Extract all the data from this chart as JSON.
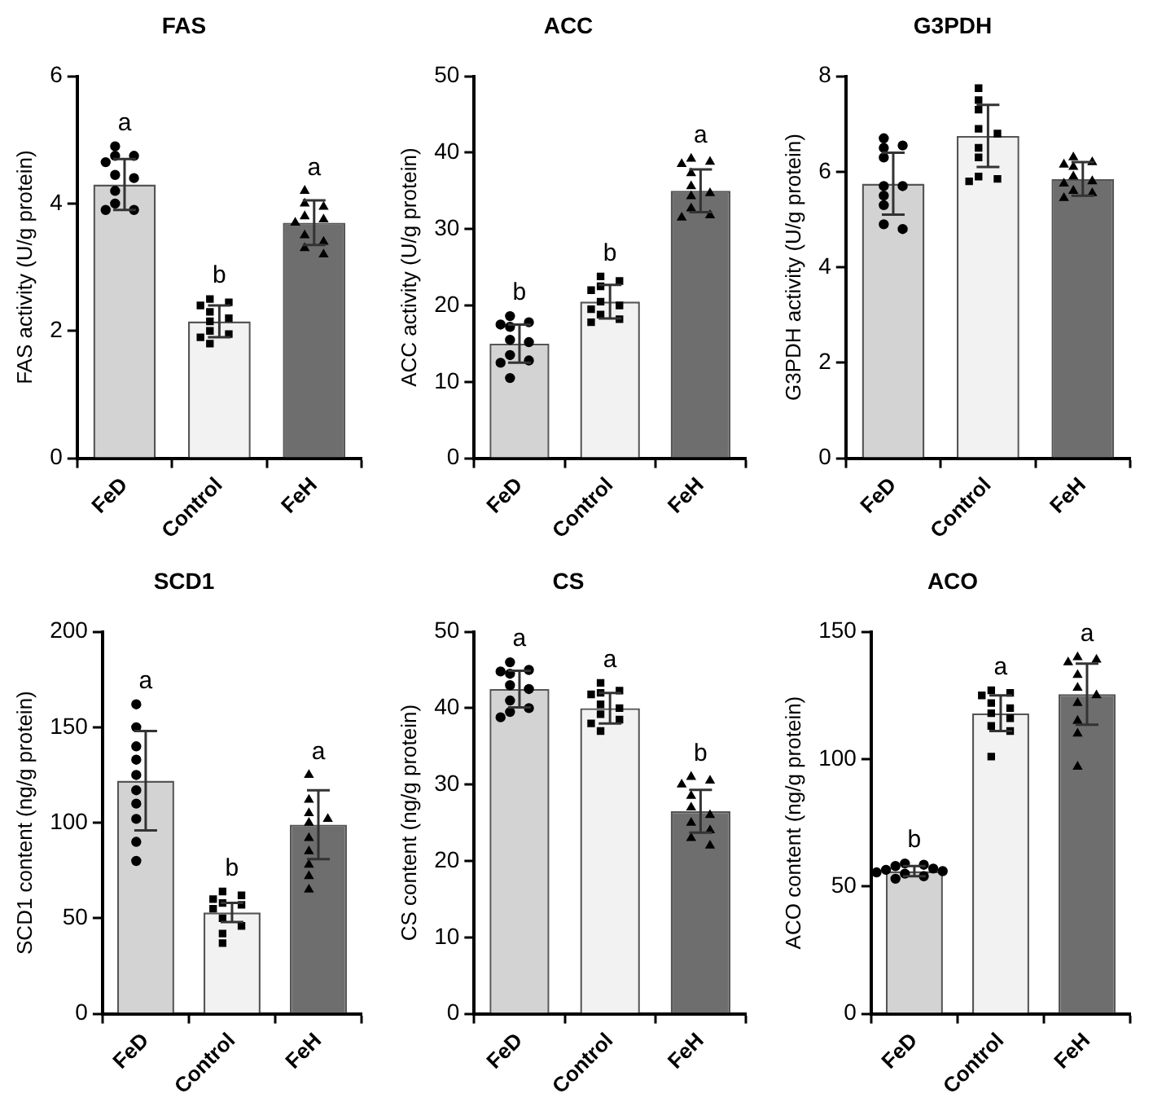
{
  "chart_data": [
    {
      "type": "bar",
      "title": "FAS",
      "ylabel": "FAS activity (U/g protein)",
      "categories": [
        "FeD",
        "Control",
        "FeH"
      ],
      "ylim": [
        0,
        6
      ],
      "yticks": [
        0,
        2,
        4,
        6
      ],
      "grid": false,
      "legend": false,
      "series": [
        {
          "type": "bar",
          "values": [
            4.3,
            2.15,
            3.7
          ],
          "errors": [
            0.4,
            0.25,
            0.35
          ],
          "colors": [
            "#d3d3d3",
            "#f2f2f2",
            "#6e6e6e"
          ]
        },
        {
          "type": "scatter",
          "marker": "circle",
          "color": "#000000",
          "x": [
            "FeD",
            "FeD",
            "FeD",
            "FeD",
            "FeD",
            "FeD",
            "FeD",
            "FeD",
            "FeD",
            "FeD"
          ],
          "values": [
            4.9,
            4.75,
            4.75,
            4.65,
            4.45,
            4.4,
            4.2,
            4.0,
            3.9,
            3.9
          ]
        },
        {
          "type": "scatter",
          "marker": "square",
          "color": "#000000",
          "x": [
            "Control",
            "Control",
            "Control",
            "Control",
            "Control",
            "Control",
            "Control",
            "Control",
            "Control",
            "Control"
          ],
          "values": [
            2.5,
            2.45,
            2.4,
            2.3,
            2.2,
            2.15,
            2.0,
            1.95,
            1.9,
            1.8
          ]
        },
        {
          "type": "scatter",
          "marker": "triangle",
          "color": "#000000",
          "x": [
            "FeH",
            "FeH",
            "FeH",
            "FeH",
            "FeH",
            "FeH",
            "FeH",
            "FeH",
            "FeH",
            "FeH"
          ],
          "values": [
            4.2,
            4.0,
            3.95,
            3.8,
            3.75,
            3.7,
            3.5,
            3.4,
            3.3,
            3.2
          ]
        }
      ],
      "annotations": [
        "a",
        "b",
        "a"
      ]
    },
    {
      "type": "bar",
      "title": "ACC",
      "ylabel": "ACC activity (U/g protein)",
      "categories": [
        "FeD",
        "Control",
        "FeH"
      ],
      "ylim": [
        0,
        50
      ],
      "yticks": [
        0,
        10,
        20,
        30,
        40,
        50
      ],
      "grid": false,
      "legend": false,
      "series": [
        {
          "type": "bar",
          "values": [
            15,
            20.5,
            35
          ],
          "errors": [
            2.5,
            2.2,
            2.8
          ],
          "colors": [
            "#d3d3d3",
            "#f2f2f2",
            "#6e6e6e"
          ]
        },
        {
          "type": "scatter",
          "marker": "circle",
          "color": "#000000",
          "x": [
            "FeD",
            "FeD",
            "FeD",
            "FeD",
            "FeD",
            "FeD",
            "FeD",
            "FeD",
            "FeD",
            "FeD"
          ],
          "values": [
            18.6,
            17.8,
            17.5,
            17.2,
            15.5,
            15.2,
            13.5,
            12.8,
            12.5,
            10.5
          ]
        },
        {
          "type": "scatter",
          "marker": "square",
          "color": "#000000",
          "x": [
            "Control",
            "Control",
            "Control",
            "Control",
            "Control",
            "Control",
            "Control",
            "Control",
            "Control",
            "Control"
          ],
          "values": [
            23.8,
            23.2,
            22.5,
            22,
            20.5,
            20,
            19.5,
            18.8,
            18.2,
            17.8
          ]
        },
        {
          "type": "scatter",
          "marker": "triangle",
          "color": "#000000",
          "x": [
            "FeH",
            "FeH",
            "FeH",
            "FeH",
            "FeH",
            "FeH",
            "FeH",
            "FeH",
            "FeH",
            "FeH"
          ],
          "values": [
            39.2,
            38.8,
            38.5,
            37.3,
            35.6,
            34.7,
            34.3,
            32.7,
            31.8,
            31.5
          ]
        }
      ],
      "annotations": [
        "b",
        "b",
        "a"
      ]
    },
    {
      "type": "bar",
      "title": "G3PDH",
      "ylabel": "G3PDH activity (U/g protein)",
      "categories": [
        "FeD",
        "Control",
        "FeH"
      ],
      "ylim": [
        0,
        8
      ],
      "yticks": [
        0,
        2,
        4,
        6,
        8
      ],
      "grid": false,
      "legend": false,
      "series": [
        {
          "type": "bar",
          "values": [
            5.75,
            6.75,
            5.85
          ],
          "errors": [
            0.65,
            0.65,
            0.35
          ],
          "colors": [
            "#d3d3d3",
            "#f2f2f2",
            "#6e6e6e"
          ]
        },
        {
          "type": "scatter",
          "marker": "circle",
          "color": "#000000",
          "x": [
            "FeD",
            "FeD",
            "FeD",
            "FeD",
            "FeD",
            "FeD",
            "FeD",
            "FeD",
            "FeD",
            "FeD"
          ],
          "values": [
            6.7,
            6.55,
            6.5,
            6.3,
            5.7,
            5.7,
            5.5,
            5.3,
            4.9,
            4.8
          ]
        },
        {
          "type": "scatter",
          "marker": "square",
          "color": "#000000",
          "x": [
            "Control",
            "Control",
            "Control",
            "Control",
            "Control",
            "Control",
            "Control",
            "Control",
            "Control",
            "Control"
          ],
          "values": [
            7.75,
            7.5,
            7.3,
            6.9,
            6.8,
            6.5,
            6.3,
            5.9,
            5.85,
            5.8
          ]
        },
        {
          "type": "scatter",
          "marker": "triangle",
          "color": "#000000",
          "x": [
            "FeH",
            "FeH",
            "FeH",
            "FeH",
            "FeH",
            "FeH",
            "FeH",
            "FeH",
            "FeH",
            "FeH"
          ],
          "values": [
            6.3,
            6.2,
            6.15,
            6.1,
            5.9,
            5.8,
            5.75,
            5.6,
            5.55,
            5.45
          ]
        }
      ]
    },
    {
      "type": "bar",
      "title": "SCD1",
      "ylabel": "SCD1 content (ng/g protein)",
      "categories": [
        "FeD",
        "Control",
        "FeH"
      ],
      "ylim": [
        0,
        200
      ],
      "yticks": [
        0,
        50,
        100,
        150,
        200
      ],
      "grid": false,
      "legend": false,
      "series": [
        {
          "type": "bar",
          "values": [
            122,
            53,
            99
          ],
          "errors": [
            26,
            5,
            18
          ],
          "colors": [
            "#d3d3d3",
            "#f2f2f2",
            "#6e6e6e"
          ]
        },
        {
          "type": "scatter",
          "marker": "circle",
          "color": "#000000",
          "x": [
            "FeD",
            "FeD",
            "FeD",
            "FeD",
            "FeD",
            "FeD",
            "FeD",
            "FeD",
            "FeD",
            "FeD"
          ],
          "values": [
            162,
            150,
            140,
            133,
            125,
            117,
            110,
            102,
            90,
            80
          ]
        },
        {
          "type": "scatter",
          "marker": "square",
          "color": "#000000",
          "x": [
            "Control",
            "Control",
            "Control",
            "Control",
            "Control",
            "Control",
            "Control",
            "Control",
            "Control",
            "Control"
          ],
          "values": [
            64,
            62,
            60,
            58,
            57,
            55,
            50,
            46,
            42,
            37
          ]
        },
        {
          "type": "scatter",
          "marker": "triangle",
          "color": "#000000",
          "x": [
            "FeH",
            "FeH",
            "FeH",
            "FeH",
            "FeH",
            "FeH",
            "FeH",
            "FeH",
            "FeH",
            "FeH"
          ],
          "values": [
            125,
            112,
            105,
            102,
            100,
            92,
            85,
            78,
            72,
            65
          ]
        }
      ],
      "annotations": [
        "a",
        "b",
        "a"
      ]
    },
    {
      "type": "bar",
      "title": "CS",
      "ylabel": "CS content (ng/g protein)",
      "categories": [
        "FeD",
        "Control",
        "FeH"
      ],
      "ylim": [
        0,
        50
      ],
      "yticks": [
        0,
        10,
        20,
        30,
        40,
        50
      ],
      "grid": false,
      "legend": false,
      "series": [
        {
          "type": "bar",
          "values": [
            42.5,
            40,
            26.5
          ],
          "errors": [
            2.4,
            2,
            2.8
          ],
          "colors": [
            "#d3d3d3",
            "#f2f2f2",
            "#6e6e6e"
          ]
        },
        {
          "type": "scatter",
          "marker": "circle",
          "color": "#000000",
          "x": [
            "FeD",
            "FeD",
            "FeD",
            "FeD",
            "FeD",
            "FeD",
            "FeD",
            "FeD",
            "FeD",
            "FeD"
          ],
          "values": [
            46,
            45,
            44.8,
            44.5,
            43,
            42.5,
            41,
            40,
            39.5,
            38.8
          ]
        },
        {
          "type": "scatter",
          "marker": "square",
          "color": "#000000",
          "x": [
            "Control",
            "Control",
            "Control",
            "Control",
            "Control",
            "Control",
            "Control",
            "Control",
            "Control",
            "Control"
          ],
          "values": [
            43.3,
            42.3,
            42,
            41.8,
            40.5,
            40,
            39.2,
            38.5,
            38,
            37
          ]
        },
        {
          "type": "scatter",
          "marker": "triangle",
          "color": "#000000",
          "x": [
            "FeH",
            "FeH",
            "FeH",
            "FeH",
            "FeH",
            "FeH",
            "FeH",
            "FeH",
            "FeH",
            "FeH"
          ],
          "values": [
            31,
            30.5,
            30,
            28.5,
            27,
            26,
            25,
            24,
            23,
            22
          ]
        }
      ],
      "annotations": [
        "a",
        "a",
        "b"
      ]
    },
    {
      "type": "bar",
      "title": "ACO",
      "ylabel": "ACO content (ng/g protein)",
      "categories": [
        "FeD",
        "Control",
        "FeH"
      ],
      "ylim": [
        0,
        150
      ],
      "yticks": [
        0,
        50,
        100,
        150
      ],
      "grid": false,
      "legend": false,
      "series": [
        {
          "type": "bar",
          "values": [
            56,
            118,
            125.5
          ],
          "errors": [
            2,
            7,
            12
          ],
          "colors": [
            "#d3d3d3",
            "#f2f2f2",
            "#6e6e6e"
          ]
        },
        {
          "type": "scatter",
          "marker": "circle",
          "color": "#000000",
          "x": [
            "FeD",
            "FeD",
            "FeD",
            "FeD",
            "FeD",
            "FeD",
            "FeD",
            "FeD",
            "FeD",
            "FeD"
          ],
          "values": [
            59,
            58.5,
            58,
            57,
            56.5,
            56,
            55.5,
            55,
            54,
            53
          ]
        },
        {
          "type": "scatter",
          "marker": "square",
          "color": "#000000",
          "x": [
            "Control",
            "Control",
            "Control",
            "Control",
            "Control",
            "Control",
            "Control",
            "Control",
            "Control",
            "Control"
          ],
          "values": [
            127,
            126,
            125,
            122,
            120,
            118,
            116,
            113,
            111,
            101
          ]
        },
        {
          "type": "scatter",
          "marker": "triangle",
          "color": "#000000",
          "x": [
            "FeH",
            "FeH",
            "FeH",
            "FeH",
            "FeH",
            "FeH",
            "FeH",
            "FeH",
            "FeH",
            "FeH"
          ],
          "values": [
            140,
            139,
            138,
            133,
            128,
            125,
            122,
            115,
            110,
            97
          ]
        }
      ],
      "annotations": [
        "b",
        "a",
        "a"
      ]
    }
  ]
}
